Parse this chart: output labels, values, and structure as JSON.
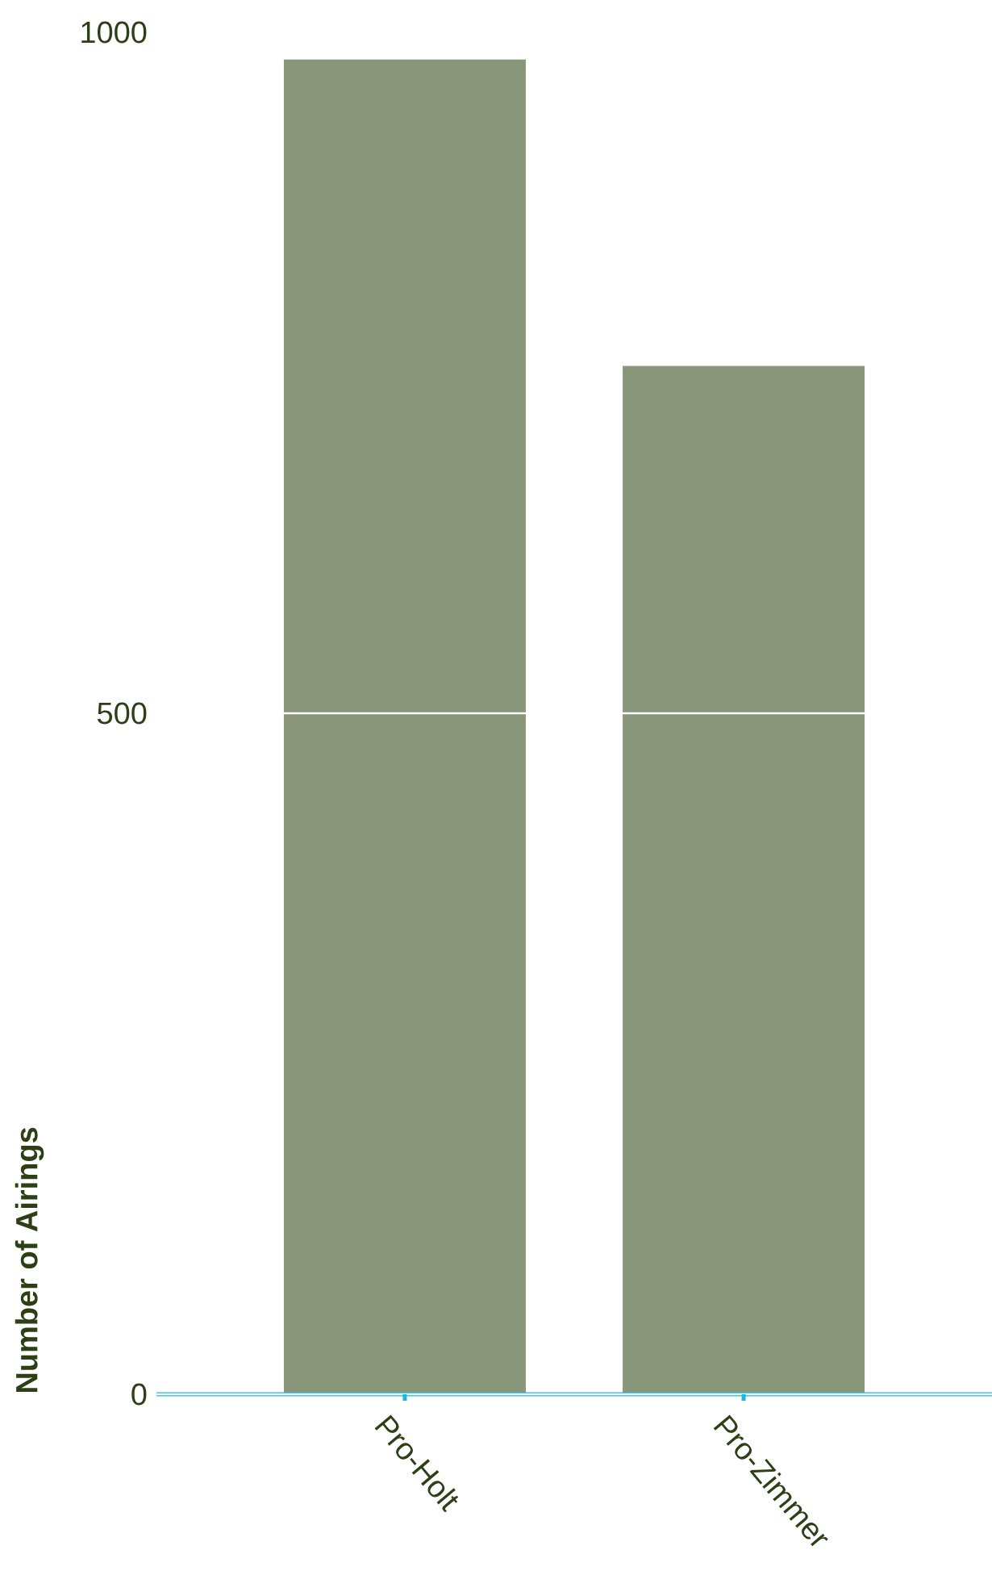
{
  "chart_data": {
    "type": "bar",
    "ylabel": "Number of Airings",
    "categories": [
      "Pro-Holt",
      "Pro-Zimmer"
    ],
    "values": [
      980,
      755
    ],
    "color": "#8a967a",
    "ylim": [
      0,
      1000
    ],
    "yticks": [
      0,
      500,
      1000
    ],
    "grid": "y"
  }
}
